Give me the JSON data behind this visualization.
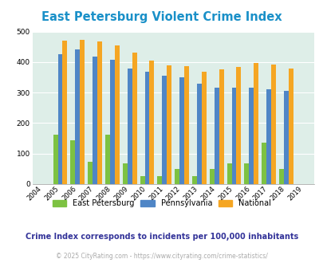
{
  "title": "East Petersburg Violent Crime Index",
  "years": [
    2004,
    2005,
    2006,
    2007,
    2008,
    2009,
    2010,
    2011,
    2012,
    2013,
    2014,
    2015,
    2016,
    2017,
    2018,
    2019
  ],
  "east_petersburg": [
    null,
    163,
    143,
    74,
    163,
    68,
    27,
    27,
    50,
    27,
    50,
    68,
    68,
    135,
    50,
    null
  ],
  "pennsylvania": [
    null,
    425,
    442,
    419,
    408,
    380,
    368,
    354,
    349,
    330,
    316,
    316,
    316,
    311,
    305,
    null
  ],
  "national": [
    null,
    470,
    474,
    468,
    455,
    432,
    405,
    388,
    387,
    368,
    376,
    383,
    397,
    393,
    380,
    null
  ],
  "ep_color": "#7dc242",
  "pa_color": "#4f86c6",
  "nat_color": "#f5a623",
  "bg_color": "#deeee8",
  "title_color": "#1a90c8",
  "subtitle": "Crime Index corresponds to incidents per 100,000 inhabitants",
  "subtitle_color": "#333399",
  "footer": "© 2025 CityRating.com - https://www.cityrating.com/crime-statistics/",
  "footer_color": "#aaaaaa",
  "ylim": [
    0,
    500
  ],
  "yticks": [
    0,
    100,
    200,
    300,
    400,
    500
  ],
  "bar_width": 0.27
}
